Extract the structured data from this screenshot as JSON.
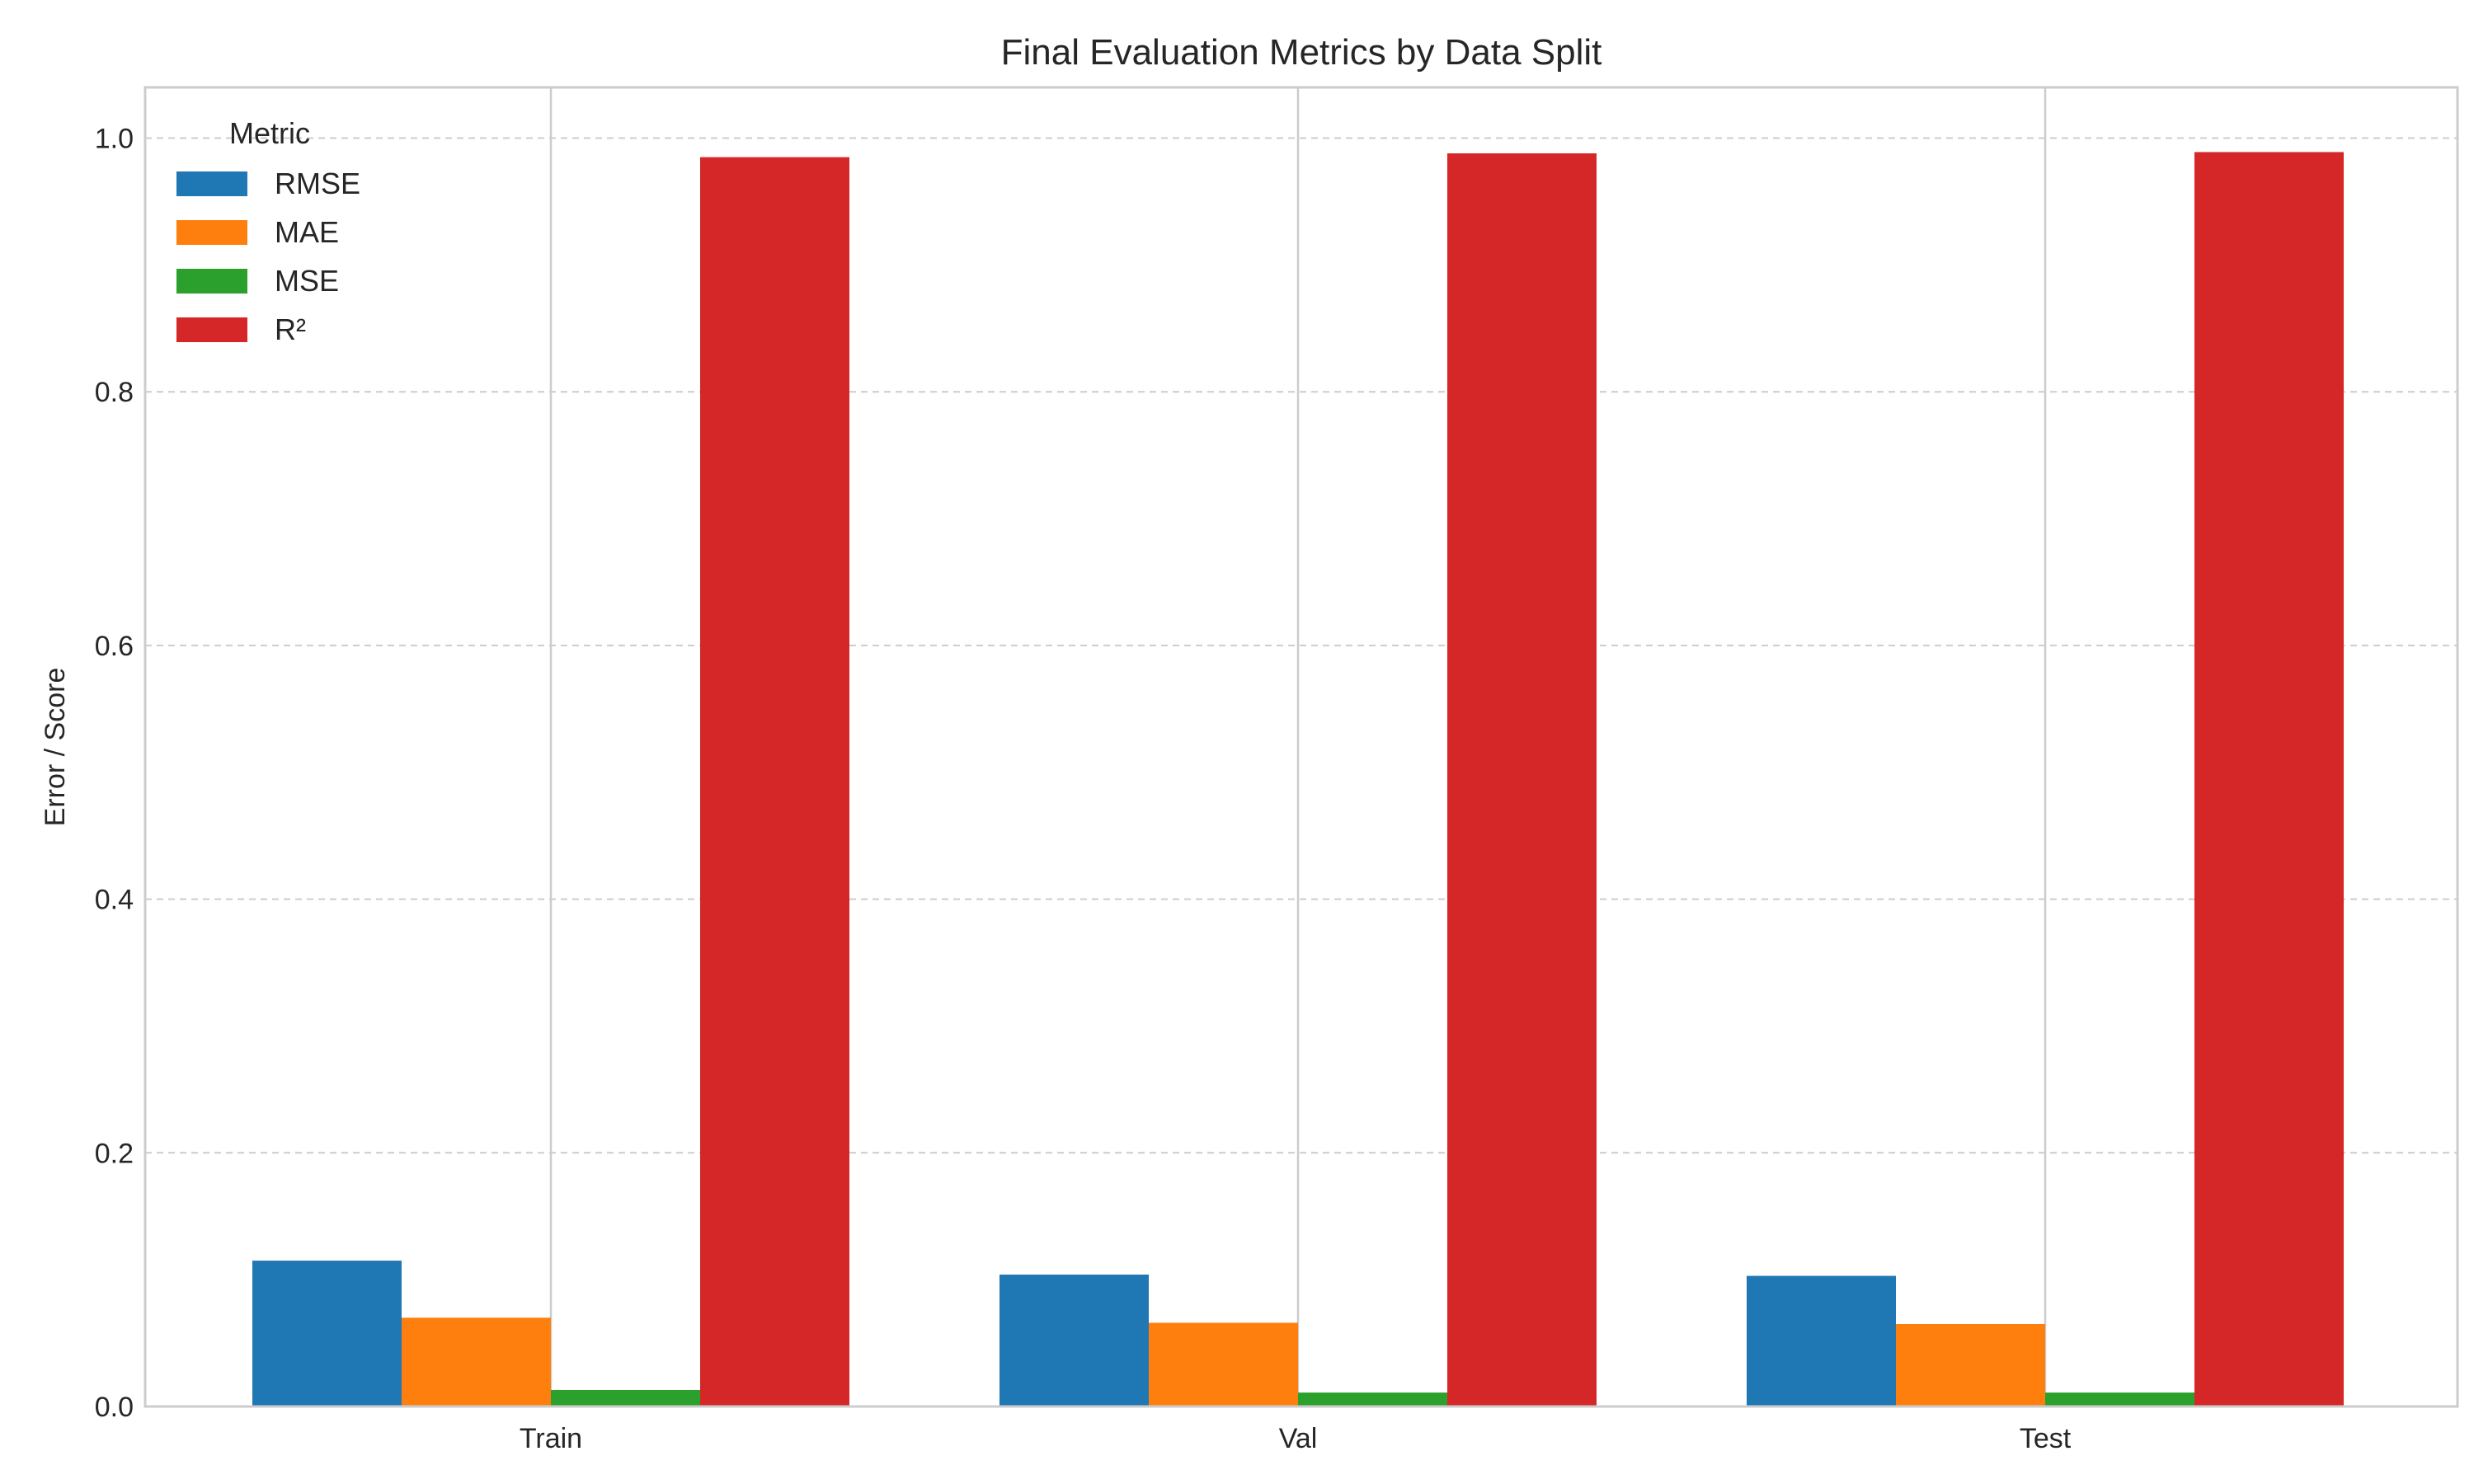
{
  "chart_data": {
    "type": "bar",
    "title": "Final Evaluation Metrics by Data Split",
    "xlabel": "",
    "ylabel": "Error / Score",
    "categories": [
      "Train",
      "Val",
      "Test"
    ],
    "ylim": [
      0,
      1.04
    ],
    "yticks": [
      0.0,
      0.2,
      0.4,
      0.6,
      0.8,
      1.0
    ],
    "ytick_labels": [
      "0.0",
      "0.2",
      "0.4",
      "0.6",
      "0.8",
      "1.0"
    ],
    "grid": true,
    "legend": {
      "title": "Metric",
      "placement": "top-left"
    },
    "series": [
      {
        "name": "RMSE",
        "color": "#1f77b4",
        "values": [
          0.115,
          0.104,
          0.103
        ]
      },
      {
        "name": "MAE",
        "color": "#ff7f0e",
        "values": [
          0.07,
          0.066,
          0.065
        ]
      },
      {
        "name": "MSE",
        "color": "#2ca02c",
        "values": [
          0.013,
          0.011,
          0.011
        ]
      },
      {
        "name": "R²",
        "color": "#d62728",
        "values": [
          0.985,
          0.988,
          0.989
        ]
      }
    ]
  }
}
